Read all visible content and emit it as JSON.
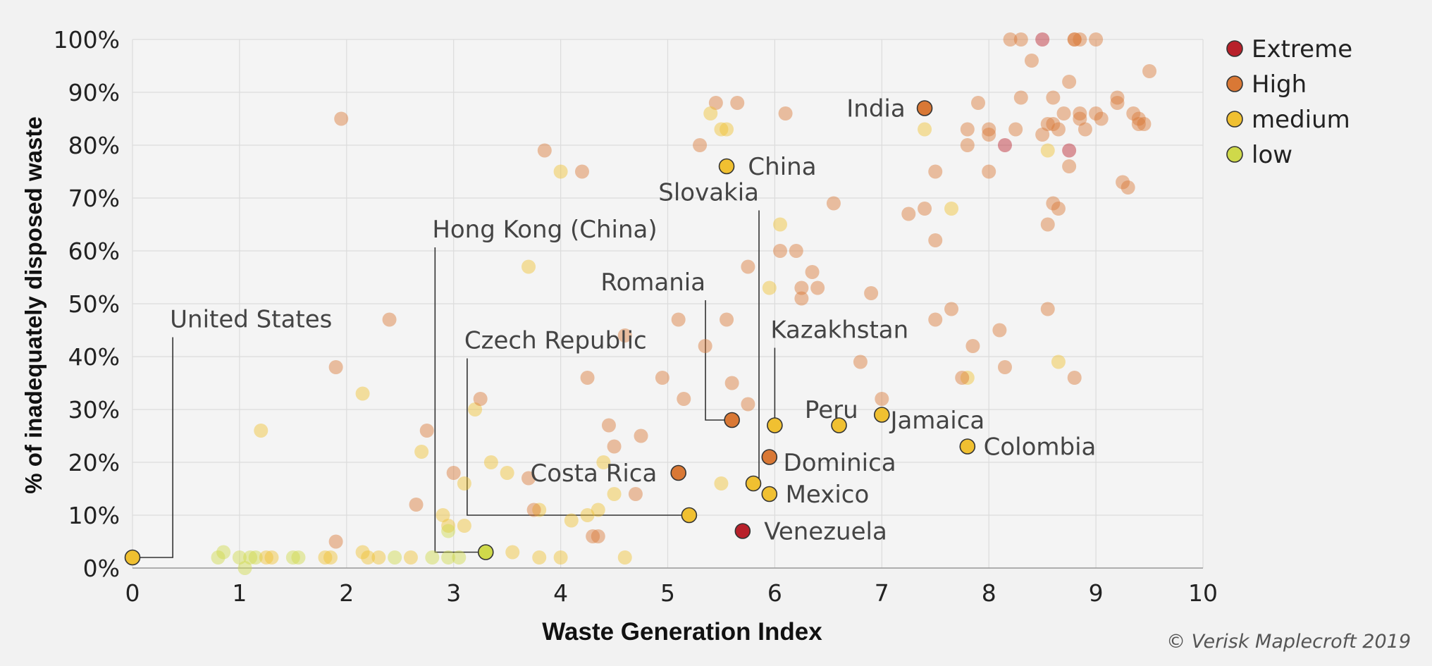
{
  "chart_data": {
    "type": "scatter",
    "title": "",
    "xlabel": "Waste Generation Index",
    "ylabel": "% of inadequately disposed waste",
    "xlim": [
      0,
      10
    ],
    "ylim": [
      0,
      100
    ],
    "x_ticks": [
      "0",
      "1",
      "2",
      "3",
      "4",
      "5",
      "6",
      "7",
      "8",
      "9",
      "10"
    ],
    "y_ticks": [
      "0%",
      "10%",
      "20%",
      "30%",
      "40%",
      "50%",
      "60%",
      "70%",
      "80%",
      "90%",
      "100%"
    ],
    "grid": true,
    "legend_position": "top-right",
    "credit": "© Verisk Maplecroft 2019",
    "colors": {
      "extreme": "#b8202a",
      "high": "#d97835",
      "medium": "#f0c031",
      "low": "#cfd94a",
      "grid": "#dcdcdc",
      "leader": "#333333"
    },
    "legend": [
      {
        "name": "Extreme",
        "key": "extreme"
      },
      {
        "name": "High",
        "key": "high"
      },
      {
        "name": "medium",
        "key": "medium"
      },
      {
        "name": "low",
        "key": "low"
      }
    ],
    "highlighted": [
      {
        "label": "United States",
        "x": 0.0,
        "y": 2,
        "category": "medium",
        "label_pos": [
          0.35,
          45
        ],
        "leader": "elbow",
        "anchor": "start"
      },
      {
        "label": "Hong Kong (China)",
        "x": 3.3,
        "y": 3,
        "category": "low",
        "label_pos": [
          2.8,
          62
        ],
        "leader": "elbow",
        "anchor": "start"
      },
      {
        "label": "Czech Republic",
        "x": 5.2,
        "y": 10,
        "category": "medium",
        "label_pos": [
          3.1,
          41
        ],
        "leader": "elbow",
        "anchor": "start"
      },
      {
        "label": "Costa Rica",
        "x": 5.1,
        "y": 18,
        "category": "high",
        "label_pos": [
          4.9,
          18
        ],
        "leader": "none",
        "anchor": "end"
      },
      {
        "label": "Romania",
        "x": 5.6,
        "y": 28,
        "category": "high",
        "label_pos": [
          5.3,
          52
        ],
        "leader": "elbow-right",
        "anchor": "end"
      },
      {
        "label": "Slovakia",
        "x": 5.8,
        "y": 16,
        "category": "medium",
        "label_pos": [
          5.8,
          69
        ],
        "leader": "elbow-right",
        "anchor": "end"
      },
      {
        "label": "Kazakhstan",
        "x": 6.0,
        "y": 27,
        "category": "medium",
        "label_pos": [
          5.96,
          43
        ],
        "leader": "vertical",
        "anchor": "start"
      },
      {
        "label": "China",
        "x": 5.55,
        "y": 76,
        "category": "medium",
        "label_pos": [
          5.75,
          76
        ],
        "leader": "none",
        "anchor": "start"
      },
      {
        "label": "India",
        "x": 7.4,
        "y": 87,
        "category": "high",
        "label_pos": [
          7.22,
          87
        ],
        "leader": "none",
        "anchor": "end"
      },
      {
        "label": "Peru",
        "x": 6.6,
        "y": 27,
        "category": "medium",
        "label_pos": [
          6.28,
          30
        ],
        "leader": "none",
        "anchor": "start"
      },
      {
        "label": "Jamaica",
        "x": 7.0,
        "y": 29,
        "category": "medium",
        "label_pos": [
          7.08,
          28
        ],
        "leader": "none",
        "anchor": "start"
      },
      {
        "label": "Colombia",
        "x": 7.8,
        "y": 23,
        "category": "medium",
        "label_pos": [
          7.95,
          23
        ],
        "leader": "none",
        "anchor": "start"
      },
      {
        "label": "Dominica",
        "x": 5.95,
        "y": 21,
        "category": "high",
        "label_pos": [
          6.08,
          20
        ],
        "leader": "none",
        "anchor": "start"
      },
      {
        "label": "Mexico",
        "x": 5.95,
        "y": 14,
        "category": "medium",
        "label_pos": [
          6.1,
          14
        ],
        "leader": "none",
        "anchor": "start"
      },
      {
        "label": "Venezuela",
        "x": 5.7,
        "y": 7,
        "category": "extreme",
        "label_pos": [
          5.9,
          7
        ],
        "leader": "none",
        "anchor": "start"
      }
    ],
    "points": [
      [
        "low",
        0.8,
        2
      ],
      [
        "low",
        0.85,
        3
      ],
      [
        "low",
        1.0,
        2
      ],
      [
        "low",
        1.05,
        0
      ],
      [
        "low",
        1.1,
        2
      ],
      [
        "low",
        1.15,
        2
      ],
      [
        "low",
        1.5,
        2
      ],
      [
        "low",
        1.55,
        2
      ],
      [
        "medium",
        1.25,
        2
      ],
      [
        "medium",
        1.3,
        2
      ],
      [
        "medium",
        1.2,
        26
      ],
      [
        "medium",
        1.8,
        2
      ],
      [
        "medium",
        1.85,
        2
      ],
      [
        "high",
        1.95,
        85
      ],
      [
        "high",
        1.9,
        38
      ],
      [
        "high",
        1.9,
        5
      ],
      [
        "medium",
        2.15,
        33
      ],
      [
        "medium",
        2.15,
        3
      ],
      [
        "medium",
        2.2,
        2
      ],
      [
        "medium",
        2.3,
        2
      ],
      [
        "low",
        2.45,
        2
      ],
      [
        "high",
        2.4,
        47
      ],
      [
        "medium",
        2.6,
        2
      ],
      [
        "low",
        2.8,
        2
      ],
      [
        "low",
        2.95,
        2
      ],
      [
        "low",
        3.05,
        2
      ],
      [
        "medium",
        2.7,
        22
      ],
      [
        "high",
        2.75,
        26
      ],
      [
        "high",
        2.65,
        12
      ],
      [
        "medium",
        2.9,
        10
      ],
      [
        "medium",
        2.95,
        8
      ],
      [
        "low",
        2.95,
        7
      ],
      [
        "high",
        3.0,
        18
      ],
      [
        "medium",
        3.1,
        16
      ],
      [
        "medium",
        3.1,
        8
      ],
      [
        "medium",
        3.2,
        30
      ],
      [
        "high",
        3.25,
        32
      ],
      [
        "medium",
        3.35,
        20
      ],
      [
        "medium",
        3.5,
        18
      ],
      [
        "medium",
        3.55,
        3
      ],
      [
        "high",
        3.7,
        17
      ],
      [
        "medium",
        3.8,
        11
      ],
      [
        "high",
        3.75,
        11
      ],
      [
        "medium",
        3.7,
        57
      ],
      [
        "high",
        3.85,
        79
      ],
      [
        "medium",
        3.8,
        2
      ],
      [
        "medium",
        4.0,
        2
      ],
      [
        "medium",
        4.1,
        9
      ],
      [
        "medium",
        4.25,
        10
      ],
      [
        "high",
        4.3,
        6
      ],
      [
        "high",
        4.35,
        6
      ],
      [
        "medium",
        4.35,
        11
      ],
      [
        "medium",
        4.4,
        20
      ],
      [
        "high",
        4.25,
        36
      ],
      [
        "high",
        4.45,
        27
      ],
      [
        "high",
        4.5,
        23
      ],
      [
        "high",
        4.6,
        44
      ],
      [
        "medium",
        4.5,
        14
      ],
      [
        "high",
        4.7,
        14
      ],
      [
        "high",
        4.75,
        25
      ],
      [
        "medium",
        4.6,
        2
      ],
      [
        "medium",
        4.0,
        75
      ],
      [
        "high",
        4.2,
        75
      ],
      [
        "high",
        4.95,
        36
      ],
      [
        "high",
        5.1,
        47
      ],
      [
        "high",
        5.15,
        32
      ],
      [
        "high",
        5.35,
        42
      ],
      [
        "medium",
        5.5,
        16
      ],
      [
        "high",
        5.55,
        47
      ],
      [
        "high",
        5.6,
        35
      ],
      [
        "high",
        5.75,
        31
      ],
      [
        "high",
        5.75,
        57
      ],
      [
        "medium",
        5.95,
        53
      ],
      [
        "high",
        6.05,
        60
      ],
      [
        "high",
        6.2,
        60
      ],
      [
        "medium",
        6.05,
        65
      ],
      [
        "high",
        6.25,
        51
      ],
      [
        "high",
        6.25,
        53
      ],
      [
        "high",
        6.35,
        56
      ],
      [
        "high",
        6.4,
        53
      ],
      [
        "high",
        5.3,
        80
      ],
      [
        "high",
        5.45,
        88
      ],
      [
        "medium",
        5.4,
        86
      ],
      [
        "medium",
        5.5,
        83
      ],
      [
        "medium",
        5.55,
        83
      ],
      [
        "high",
        5.65,
        88
      ],
      [
        "high",
        6.1,
        86
      ],
      [
        "high",
        6.55,
        69
      ],
      [
        "high",
        6.9,
        52
      ],
      [
        "high",
        6.8,
        39
      ],
      [
        "high",
        7.0,
        32
      ],
      [
        "high",
        7.25,
        67
      ],
      [
        "high",
        7.4,
        68
      ],
      [
        "medium",
        7.4,
        83
      ],
      [
        "high",
        7.5,
        47
      ],
      [
        "high",
        7.5,
        62
      ],
      [
        "high",
        7.5,
        75
      ],
      [
        "high",
        7.65,
        49
      ],
      [
        "medium",
        7.65,
        68
      ],
      [
        "medium",
        7.8,
        36
      ],
      [
        "high",
        7.75,
        36
      ],
      [
        "high",
        7.8,
        80
      ],
      [
        "high",
        7.8,
        83
      ],
      [
        "high",
        7.85,
        42
      ],
      [
        "high",
        7.9,
        88
      ],
      [
        "high",
        8.0,
        82
      ],
      [
        "high",
        8.0,
        75
      ],
      [
        "high",
        8.1,
        45
      ],
      [
        "high",
        8.15,
        38
      ],
      [
        "extreme",
        8.15,
        80
      ],
      [
        "high",
        8.25,
        83
      ],
      [
        "high",
        8.3,
        89
      ],
      [
        "high",
        8.4,
        96
      ],
      [
        "high",
        8.2,
        100
      ],
      [
        "high",
        8.3,
        100
      ],
      [
        "extreme",
        8.5,
        100
      ],
      [
        "high",
        8.5,
        82
      ],
      [
        "high",
        8.55,
        84
      ],
      [
        "high",
        8.55,
        65
      ],
      [
        "high",
        8.55,
        49
      ],
      [
        "medium",
        8.55,
        79
      ],
      [
        "high",
        8.6,
        89
      ],
      [
        "high",
        8.6,
        84
      ],
      [
        "high",
        8.65,
        83
      ],
      [
        "high",
        8.6,
        69
      ],
      [
        "high",
        8.65,
        68
      ],
      [
        "medium",
        8.65,
        39
      ],
      [
        "high",
        8.7,
        86
      ],
      [
        "high",
        8.75,
        92
      ],
      [
        "high",
        8.75,
        76
      ],
      [
        "extreme",
        8.75,
        79
      ],
      [
        "high",
        8.8,
        36
      ],
      [
        "high",
        8.8,
        100
      ],
      [
        "high",
        8.85,
        100
      ],
      [
        "high",
        8.85,
        86
      ],
      [
        "high",
        8.85,
        85
      ],
      [
        "high",
        8.9,
        83
      ],
      [
        "high",
        9.0,
        86
      ],
      [
        "high",
        9.0,
        100
      ],
      [
        "high",
        9.05,
        85
      ],
      [
        "high",
        9.2,
        89
      ],
      [
        "high",
        9.2,
        88
      ],
      [
        "high",
        9.25,
        73
      ],
      [
        "high",
        9.3,
        72
      ],
      [
        "high",
        9.35,
        86
      ],
      [
        "high",
        9.4,
        84
      ],
      [
        "high",
        9.4,
        85
      ],
      [
        "high",
        9.45,
        84
      ],
      [
        "high",
        9.5,
        94
      ],
      [
        "high",
        8.8,
        100
      ],
      [
        "high",
        8.0,
        83
      ]
    ]
  }
}
